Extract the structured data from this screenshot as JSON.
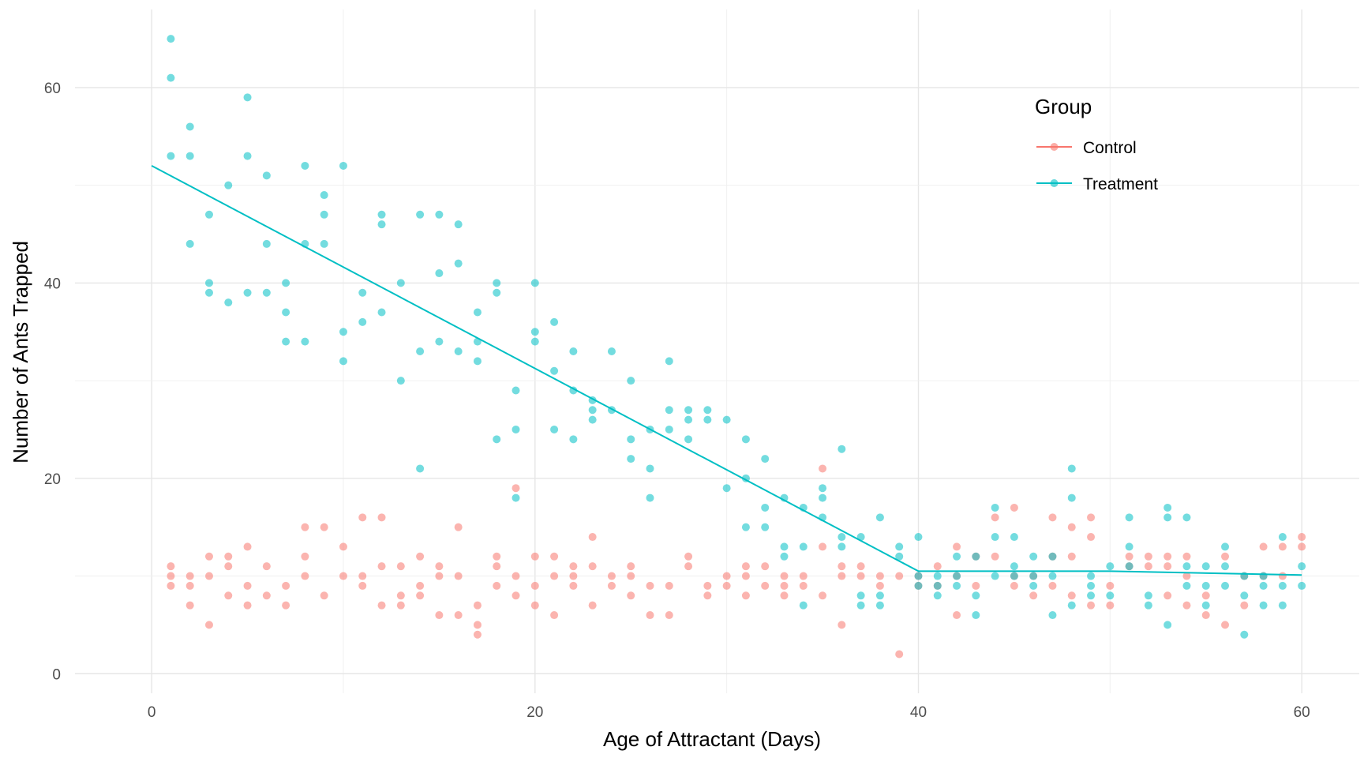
{
  "chart_data": {
    "type": "scatter",
    "xlabel": "Age of Attractant (Days)",
    "ylabel": "Number of Ants Trapped",
    "xlim": [
      -4,
      63
    ],
    "ylim": [
      -2,
      68
    ],
    "x_ticks": [
      0,
      20,
      40,
      60
    ],
    "y_ticks": [
      0,
      20,
      40,
      60
    ],
    "x_tick_labels": [
      "0",
      "20",
      "40",
      "60"
    ],
    "y_tick_labels": [
      "0",
      "20",
      "40",
      "60"
    ],
    "grid": true,
    "legend": {
      "title": "Group",
      "placement": "top-right",
      "entries": [
        "Control",
        "Treatment"
      ]
    },
    "series": [
      {
        "name": "Control",
        "color": "#F8766D",
        "points": [
          [
            1,
            11
          ],
          [
            1,
            10
          ],
          [
            1,
            9
          ],
          [
            2,
            10
          ],
          [
            2,
            9
          ],
          [
            2,
            7
          ],
          [
            3,
            12
          ],
          [
            3,
            10
          ],
          [
            3,
            5
          ],
          [
            4,
            12
          ],
          [
            4,
            11
          ],
          [
            4,
            8
          ],
          [
            5,
            13
          ],
          [
            5,
            9
          ],
          [
            5,
            7
          ],
          [
            6,
            11
          ],
          [
            6,
            8
          ],
          [
            7,
            9
          ],
          [
            7,
            7
          ],
          [
            8,
            15
          ],
          [
            8,
            12
          ],
          [
            8,
            10
          ],
          [
            9,
            15
          ],
          [
            9,
            8
          ],
          [
            10,
            13
          ],
          [
            10,
            10
          ],
          [
            11,
            16
          ],
          [
            11,
            10
          ],
          [
            11,
            9
          ],
          [
            12,
            16
          ],
          [
            12,
            11
          ],
          [
            12,
            7
          ],
          [
            13,
            11
          ],
          [
            13,
            8
          ],
          [
            13,
            7
          ],
          [
            14,
            12
          ],
          [
            14,
            9
          ],
          [
            14,
            8
          ],
          [
            15,
            11
          ],
          [
            15,
            10
          ],
          [
            15,
            6
          ],
          [
            16,
            15
          ],
          [
            16,
            10
          ],
          [
            16,
            6
          ],
          [
            17,
            7
          ],
          [
            17,
            5
          ],
          [
            17,
            4
          ],
          [
            18,
            12
          ],
          [
            18,
            11
          ],
          [
            18,
            9
          ],
          [
            19,
            19
          ],
          [
            19,
            10
          ],
          [
            19,
            8
          ],
          [
            20,
            12
          ],
          [
            20,
            9
          ],
          [
            20,
            7
          ],
          [
            21,
            12
          ],
          [
            21,
            10
          ],
          [
            21,
            6
          ],
          [
            22,
            11
          ],
          [
            22,
            10
          ],
          [
            22,
            9
          ],
          [
            23,
            14
          ],
          [
            23,
            11
          ],
          [
            23,
            7
          ],
          [
            24,
            10
          ],
          [
            24,
            9
          ],
          [
            25,
            11
          ],
          [
            25,
            10
          ],
          [
            25,
            8
          ],
          [
            26,
            9
          ],
          [
            26,
            6
          ],
          [
            27,
            9
          ],
          [
            27,
            6
          ],
          [
            28,
            12
          ],
          [
            28,
            11
          ],
          [
            29,
            9
          ],
          [
            29,
            8
          ],
          [
            30,
            10
          ],
          [
            30,
            9
          ],
          [
            31,
            11
          ],
          [
            31,
            10
          ],
          [
            31,
            8
          ],
          [
            32,
            11
          ],
          [
            32,
            9
          ],
          [
            33,
            10
          ],
          [
            33,
            9
          ],
          [
            33,
            8
          ],
          [
            34,
            10
          ],
          [
            34,
            9
          ],
          [
            35,
            21
          ],
          [
            35,
            13
          ],
          [
            35,
            8
          ],
          [
            36,
            11
          ],
          [
            36,
            10
          ],
          [
            36,
            5
          ],
          [
            37,
            11
          ],
          [
            37,
            10
          ],
          [
            38,
            10
          ],
          [
            38,
            9
          ],
          [
            39,
            10
          ],
          [
            39,
            2
          ],
          [
            40,
            10
          ],
          [
            40,
            9
          ],
          [
            41,
            11
          ],
          [
            41,
            9
          ],
          [
            42,
            13
          ],
          [
            42,
            10
          ],
          [
            42,
            6
          ],
          [
            43,
            12
          ],
          [
            43,
            9
          ],
          [
            44,
            16
          ],
          [
            44,
            12
          ],
          [
            45,
            17
          ],
          [
            45,
            10
          ],
          [
            45,
            9
          ],
          [
            46,
            10
          ],
          [
            46,
            8
          ],
          [
            47,
            16
          ],
          [
            47,
            12
          ],
          [
            47,
            9
          ],
          [
            48,
            15
          ],
          [
            48,
            12
          ],
          [
            48,
            8
          ],
          [
            49,
            16
          ],
          [
            49,
            14
          ],
          [
            49,
            7
          ],
          [
            50,
            9
          ],
          [
            50,
            7
          ],
          [
            51,
            12
          ],
          [
            51,
            11
          ],
          [
            52,
            12
          ],
          [
            52,
            11
          ],
          [
            53,
            12
          ],
          [
            53,
            11
          ],
          [
            53,
            8
          ],
          [
            54,
            12
          ],
          [
            54,
            10
          ],
          [
            54,
            7
          ],
          [
            55,
            8
          ],
          [
            55,
            6
          ],
          [
            56,
            12
          ],
          [
            56,
            5
          ],
          [
            57,
            10
          ],
          [
            57,
            7
          ],
          [
            58,
            13
          ],
          [
            58,
            10
          ],
          [
            59,
            13
          ],
          [
            59,
            10
          ],
          [
            60,
            14
          ],
          [
            60,
            13
          ]
        ]
      },
      {
        "name": "Treatment",
        "color": "#00BFC4",
        "points": [
          [
            1,
            65
          ],
          [
            1,
            61
          ],
          [
            1,
            53
          ],
          [
            2,
            56
          ],
          [
            2,
            53
          ],
          [
            2,
            44
          ],
          [
            3,
            47
          ],
          [
            3,
            40
          ],
          [
            3,
            39
          ],
          [
            4,
            50
          ],
          [
            4,
            38
          ],
          [
            5,
            59
          ],
          [
            5,
            53
          ],
          [
            5,
            39
          ],
          [
            6,
            51
          ],
          [
            6,
            44
          ],
          [
            6,
            39
          ],
          [
            7,
            40
          ],
          [
            7,
            37
          ],
          [
            7,
            34
          ],
          [
            8,
            52
          ],
          [
            8,
            44
          ],
          [
            8,
            34
          ],
          [
            9,
            49
          ],
          [
            9,
            47
          ],
          [
            9,
            44
          ],
          [
            10,
            52
          ],
          [
            10,
            35
          ],
          [
            10,
            32
          ],
          [
            11,
            39
          ],
          [
            11,
            36
          ],
          [
            12,
            47
          ],
          [
            12,
            46
          ],
          [
            12,
            37
          ],
          [
            13,
            40
          ],
          [
            13,
            30
          ],
          [
            14,
            47
          ],
          [
            14,
            33
          ],
          [
            14,
            21
          ],
          [
            15,
            47
          ],
          [
            15,
            41
          ],
          [
            15,
            34
          ],
          [
            16,
            46
          ],
          [
            16,
            42
          ],
          [
            16,
            33
          ],
          [
            17,
            37
          ],
          [
            17,
            34
          ],
          [
            17,
            32
          ],
          [
            18,
            40
          ],
          [
            18,
            39
          ],
          [
            18,
            24
          ],
          [
            19,
            29
          ],
          [
            19,
            25
          ],
          [
            19,
            18
          ],
          [
            20,
            40
          ],
          [
            20,
            35
          ],
          [
            20,
            34
          ],
          [
            21,
            36
          ],
          [
            21,
            31
          ],
          [
            21,
            25
          ],
          [
            22,
            33
          ],
          [
            22,
            29
          ],
          [
            22,
            24
          ],
          [
            23,
            28
          ],
          [
            23,
            27
          ],
          [
            23,
            26
          ],
          [
            24,
            33
          ],
          [
            24,
            27
          ],
          [
            25,
            30
          ],
          [
            25,
            24
          ],
          [
            25,
            22
          ],
          [
            26,
            25
          ],
          [
            26,
            21
          ],
          [
            26,
            18
          ],
          [
            27,
            32
          ],
          [
            27,
            27
          ],
          [
            27,
            25
          ],
          [
            28,
            27
          ],
          [
            28,
            26
          ],
          [
            28,
            24
          ],
          [
            29,
            27
          ],
          [
            29,
            26
          ],
          [
            30,
            26
          ],
          [
            30,
            19
          ],
          [
            31,
            24
          ],
          [
            31,
            20
          ],
          [
            31,
            15
          ],
          [
            32,
            22
          ],
          [
            32,
            17
          ],
          [
            32,
            15
          ],
          [
            33,
            18
          ],
          [
            33,
            13
          ],
          [
            33,
            12
          ],
          [
            34,
            17
          ],
          [
            34,
            13
          ],
          [
            34,
            7
          ],
          [
            35,
            19
          ],
          [
            35,
            18
          ],
          [
            35,
            16
          ],
          [
            36,
            23
          ],
          [
            36,
            14
          ],
          [
            36,
            13
          ],
          [
            37,
            14
          ],
          [
            37,
            8
          ],
          [
            37,
            7
          ],
          [
            38,
            16
          ],
          [
            38,
            8
          ],
          [
            38,
            7
          ],
          [
            39,
            13
          ],
          [
            39,
            12
          ],
          [
            40,
            14
          ],
          [
            40,
            10
          ],
          [
            40,
            9
          ],
          [
            41,
            10
          ],
          [
            41,
            9
          ],
          [
            41,
            8
          ],
          [
            42,
            12
          ],
          [
            42,
            10
          ],
          [
            42,
            9
          ],
          [
            43,
            12
          ],
          [
            43,
            8
          ],
          [
            43,
            6
          ],
          [
            44,
            17
          ],
          [
            44,
            14
          ],
          [
            44,
            10
          ],
          [
            45,
            14
          ],
          [
            45,
            11
          ],
          [
            45,
            10
          ],
          [
            46,
            12
          ],
          [
            46,
            10
          ],
          [
            46,
            9
          ],
          [
            47,
            12
          ],
          [
            47,
            10
          ],
          [
            47,
            6
          ],
          [
            48,
            21
          ],
          [
            48,
            18
          ],
          [
            48,
            7
          ],
          [
            49,
            10
          ],
          [
            49,
            9
          ],
          [
            49,
            8
          ],
          [
            50,
            11
          ],
          [
            50,
            8
          ],
          [
            51,
            16
          ],
          [
            51,
            13
          ],
          [
            51,
            11
          ],
          [
            52,
            8
          ],
          [
            52,
            7
          ],
          [
            53,
            17
          ],
          [
            53,
            16
          ],
          [
            53,
            5
          ],
          [
            54,
            16
          ],
          [
            54,
            11
          ],
          [
            54,
            9
          ],
          [
            55,
            11
          ],
          [
            55,
            9
          ],
          [
            55,
            7
          ],
          [
            56,
            13
          ],
          [
            56,
            11
          ],
          [
            56,
            9
          ],
          [
            57,
            10
          ],
          [
            57,
            8
          ],
          [
            57,
            4
          ],
          [
            58,
            10
          ],
          [
            58,
            9
          ],
          [
            58,
            7
          ],
          [
            59,
            14
          ],
          [
            59,
            9
          ],
          [
            59,
            7
          ],
          [
            60,
            11
          ],
          [
            60,
            9
          ]
        ],
        "fit_line": [
          [
            0,
            52
          ],
          [
            40,
            10.5
          ],
          [
            50,
            10.5
          ],
          [
            60,
            10.1
          ]
        ]
      }
    ]
  }
}
